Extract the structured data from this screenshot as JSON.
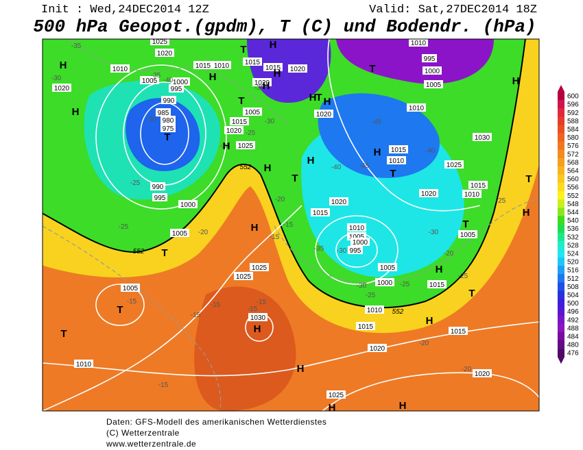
{
  "header": {
    "init": "Init : Wed,24DEC2014 12Z",
    "valid": "Valid: Sat,27DEC2014 18Z",
    "title": "500 hPa Geopot.(gpdm), T (C) und Bodendr. (hPa)"
  },
  "map": {
    "pressure_labels": [
      "1025",
      "1020",
      "1010",
      "1020",
      "1005",
      "1000",
      "995",
      "990",
      "985",
      "980",
      "975",
      "1015",
      "1010",
      "1015",
      "1015",
      "1020",
      "1020",
      "1005",
      "1015",
      "1020",
      "1025",
      "1010",
      "995",
      "1000",
      "1005",
      "1010",
      "1020",
      "1030",
      "1025",
      "1015",
      "1010",
      "1020",
      "1015",
      "1010",
      "1020",
      "1015",
      "990",
      "995",
      "1000",
      "1005",
      "1010",
      "1005",
      "1000",
      "995",
      "1005",
      "1000",
      "1015",
      "1005",
      "1025",
      "1025",
      "1005",
      "1030",
      "1010",
      "1015",
      "1020",
      "1015",
      "1020",
      "1010",
      "1025"
    ],
    "temperature_labels": [
      "-35",
      "-30",
      "-35",
      "-40",
      "-30",
      "-25",
      "-25",
      "-30",
      "-35",
      "-45",
      "-40",
      "-45",
      "-40",
      "-25",
      "-25",
      "-20",
      "-20",
      "-15",
      "-15",
      "-35",
      "-30",
      "-30",
      "-25",
      "-25",
      "-30",
      "-20",
      "-25",
      "-25",
      "-15",
      "-15",
      "-15",
      "-15",
      "-15",
      "-20",
      "-20",
      "-15"
    ],
    "geopotential_labels": [
      "552",
      "552",
      "552"
    ],
    "pressure_systems": [
      "H",
      "T",
      "H",
      "T",
      "H",
      "H",
      "T",
      "H",
      "H",
      "T",
      "T",
      "H",
      "H",
      "T",
      "H",
      "T",
      "H",
      "H",
      "H",
      "T",
      "T",
      "T",
      "H",
      "H",
      "H",
      "H",
      "H",
      "T",
      "H",
      "T",
      "H",
      "H",
      "T",
      "H"
    ]
  },
  "colorbar": {
    "ticks": [
      600,
      596,
      592,
      588,
      584,
      580,
      576,
      572,
      568,
      564,
      560,
      556,
      552,
      548,
      544,
      540,
      536,
      532,
      528,
      524,
      520,
      516,
      512,
      508,
      504,
      500,
      496,
      492,
      488,
      484,
      480,
      476
    ],
    "colors": [
      "#b4003c",
      "#d2144a",
      "#e0283c",
      "#e63c28",
      "#e85020",
      "#ec641e",
      "#ef781e",
      "#f28c1e",
      "#f5a01e",
      "#f8b41e",
      "#fac81e",
      "#fcdc1e",
      "#fff01e",
      "#c8f01e",
      "#8ce61e",
      "#3cdc1e",
      "#1ede50",
      "#1ee68c",
      "#1eeec8",
      "#1ee6f0",
      "#1ec8f5",
      "#1ea0f5",
      "#1e78f0",
      "#1e50e6",
      "#2832dc",
      "#3c1edc",
      "#5a14d2",
      "#7814c8",
      "#8c14be",
      "#7a0aa0",
      "#640a82",
      "#500a64"
    ]
  },
  "footer": {
    "lines": [
      "Daten: GFS-Modell des amerikanischen Wetterdienstes",
      "(C) Wetterzentrale",
      "www.wetterzentrale.de"
    ]
  }
}
